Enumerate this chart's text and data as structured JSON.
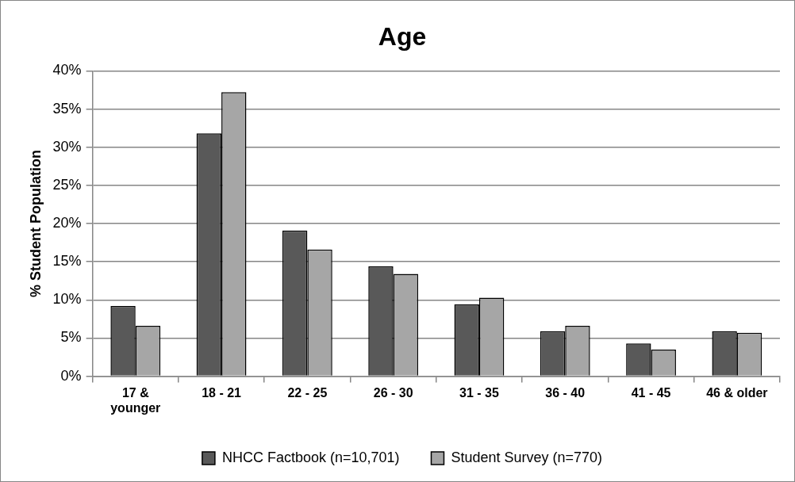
{
  "chart_data": {
    "type": "bar",
    "title": "Age",
    "ylabel": "% Student Population",
    "categories": [
      "17 & younger",
      "18 - 21",
      "22 - 25",
      "26 - 30",
      "31 - 35",
      "36 - 40",
      "41 - 45",
      "46 & older"
    ],
    "series": [
      {
        "name": "NHCC Factbook (n=10,701)",
        "color": "#595959",
        "values": [
          9.2,
          31.8,
          19.1,
          14.4,
          9.4,
          5.9,
          4.3,
          5.9
        ]
      },
      {
        "name": "Student Survey (n=770)",
        "color": "#a6a6a6",
        "values": [
          6.6,
          37.2,
          16.6,
          13.4,
          10.3,
          6.6,
          3.5,
          5.7
        ]
      }
    ],
    "ylim": [
      0,
      40
    ],
    "yticks": [
      {
        "value": 0,
        "label": "0%"
      },
      {
        "value": 5,
        "label": "5%"
      },
      {
        "value": 10,
        "label": "10%"
      },
      {
        "value": 15,
        "label": "15%"
      },
      {
        "value": 20,
        "label": "20%"
      },
      {
        "value": 25,
        "label": "25%"
      },
      {
        "value": 30,
        "label": "30%"
      },
      {
        "value": 35,
        "label": "35%"
      },
      {
        "value": 40,
        "label": "40%"
      }
    ],
    "grid": "y",
    "legend": "bottom"
  }
}
